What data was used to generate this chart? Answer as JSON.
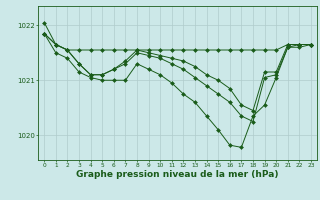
{
  "background_color": "#cce8e8",
  "grid_color": "#b0cccc",
  "line_color": "#1a5c1a",
  "marker_color": "#1a5c1a",
  "xlabel": "Graphe pression niveau de la mer (hPa)",
  "xlabel_fontsize": 6.5,
  "xlim": [
    -0.5,
    23.5
  ],
  "ylim": [
    1019.55,
    1022.35
  ],
  "yticks": [
    1020,
    1021,
    1022
  ],
  "xticks": [
    0,
    1,
    2,
    3,
    4,
    5,
    6,
    7,
    8,
    9,
    10,
    11,
    12,
    13,
    14,
    15,
    16,
    17,
    18,
    19,
    20,
    21,
    22,
    23
  ],
  "series": [
    [
      1022.05,
      1021.65,
      1021.55,
      1021.55,
      1021.55,
      1021.55,
      1021.55,
      1021.55,
      1021.55,
      1021.55,
      1021.55,
      1021.55,
      1021.55,
      1021.55,
      1021.55,
      1021.55,
      1021.55,
      1021.55,
      1021.55,
      1021.55,
      1021.55,
      1021.65,
      1021.65,
      1021.65
    ],
    [
      1021.85,
      1021.65,
      1021.55,
      1021.3,
      1021.1,
      1021.1,
      1021.2,
      1021.35,
      1021.55,
      1021.5,
      1021.45,
      1021.4,
      1021.35,
      1021.25,
      1021.1,
      1021.0,
      1020.85,
      1020.55,
      1020.45,
      1021.15,
      1021.15,
      1021.65,
      1021.65,
      1021.65
    ],
    [
      1021.85,
      1021.65,
      1021.55,
      1021.3,
      1021.1,
      1021.1,
      1021.2,
      1021.3,
      1021.5,
      1021.45,
      1021.4,
      1021.3,
      1021.2,
      1021.05,
      1020.9,
      1020.75,
      1020.6,
      1020.35,
      1020.25,
      1021.05,
      1021.1,
      1021.6,
      1021.65,
      1021.65
    ],
    [
      1021.85,
      1021.5,
      1021.4,
      1021.15,
      1021.05,
      1021.0,
      1021.0,
      1021.0,
      1021.3,
      1021.2,
      1021.1,
      1020.95,
      1020.75,
      1020.6,
      1020.35,
      1020.1,
      1019.82,
      1019.78,
      1020.35,
      1020.55,
      1021.05,
      1021.6,
      1021.6,
      1021.65
    ]
  ]
}
